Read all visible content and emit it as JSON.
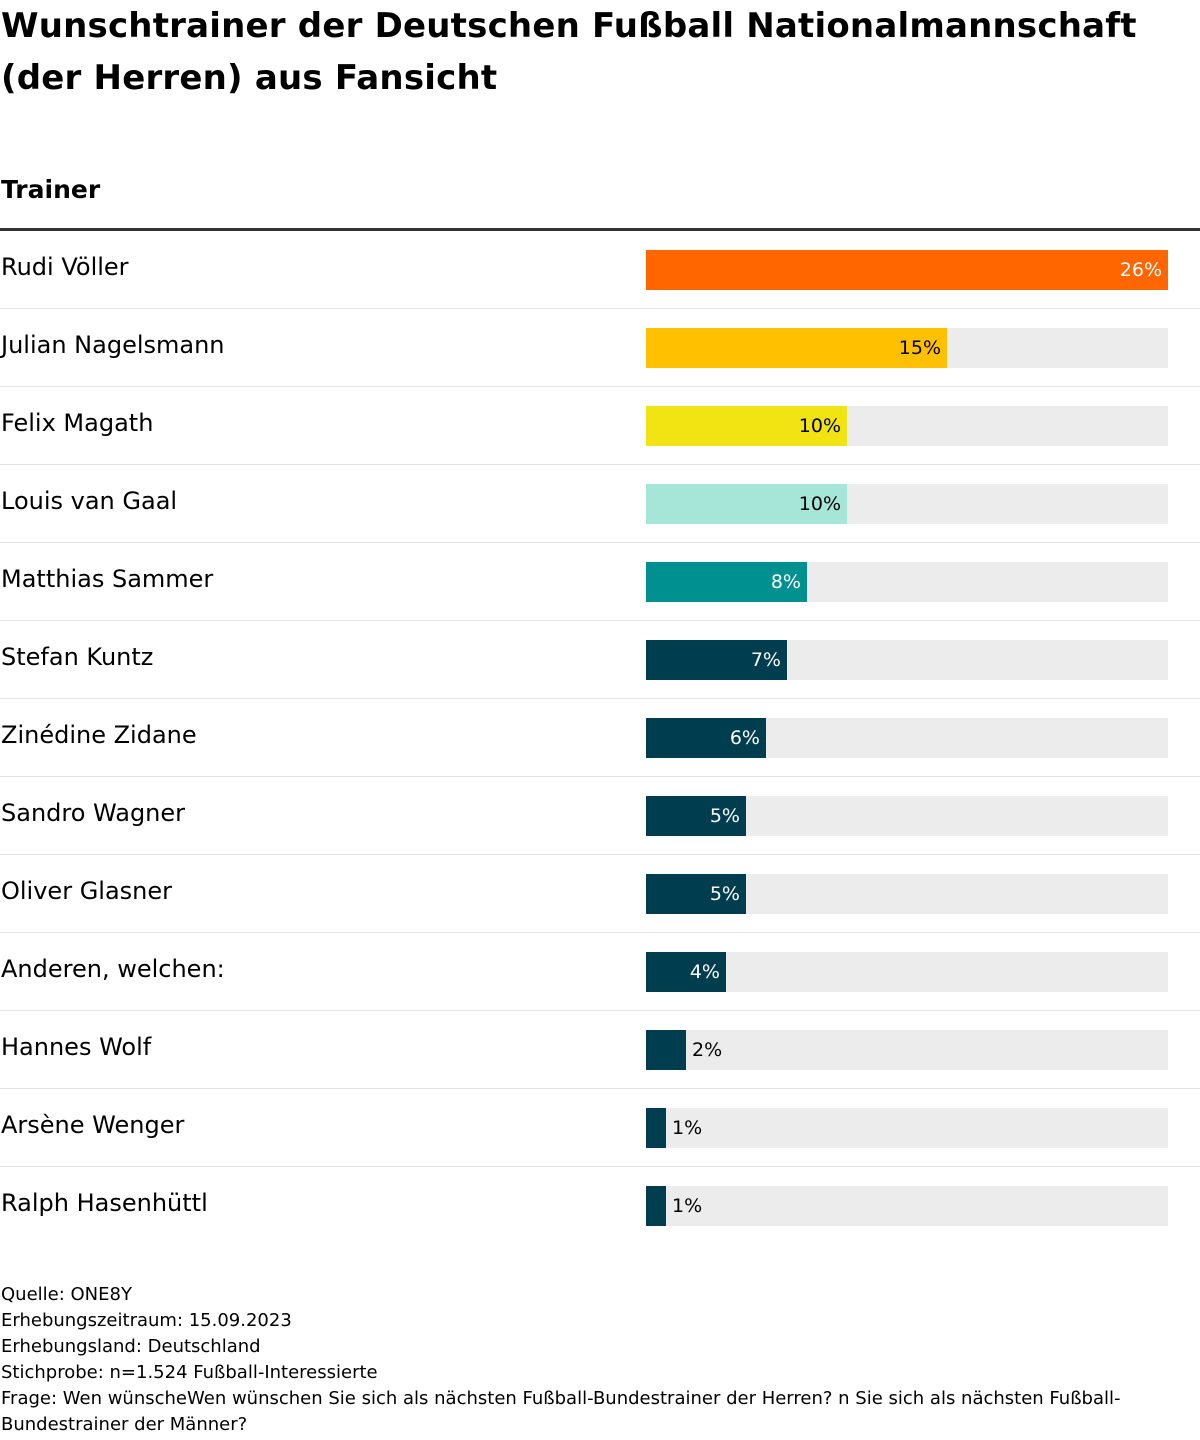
{
  "title": "Wunschtrainer der Deutschen Fußball Nationalmannschaft (der Herren) aus Fansicht",
  "column_header": "Trainer",
  "chart_data": {
    "type": "bar",
    "orientation": "horizontal",
    "title": "Wunschtrainer der Deutschen Fußball Nationalmannschaft (der Herren) aus Fansicht",
    "xlabel": "",
    "ylabel": "Trainer",
    "xlim": [
      0,
      26
    ],
    "unit": "%",
    "categories": [
      "Rudi Völler",
      "Julian Nagelsmann",
      "Felix Magath",
      "Louis van Gaal",
      "Matthias Sammer",
      "Stefan Kuntz",
      "Zinédine Zidane",
      "Sandro Wagner",
      "Oliver Glasner",
      "Anderen, welchen:",
      "Hannes Wolf",
      "Arsène Wenger",
      "Ralph Hasenhüttl"
    ],
    "values": [
      26,
      15,
      10,
      10,
      8,
      7,
      6,
      5,
      5,
      4,
      2,
      1,
      1
    ],
    "labels": [
      "26%",
      "15%",
      "10%",
      "10%",
      "8%",
      "7%",
      "6%",
      "5%",
      "5%",
      "4%",
      "2%",
      "1%",
      "1%"
    ],
    "colors": [
      "#ff6600",
      "#ffc000",
      "#f2e313",
      "#a6e6d8",
      "#009090",
      "#003e4f",
      "#003e4f",
      "#003e4f",
      "#003e4f",
      "#003e4f",
      "#003e4f",
      "#003e4f",
      "#003e4f"
    ],
    "label_colors": [
      "#ffffff",
      "#000000",
      "#000000",
      "#000000",
      "#ffffff",
      "#ffffff",
      "#ffffff",
      "#ffffff",
      "#ffffff",
      "#ffffff",
      "#000000",
      "#000000",
      "#000000"
    ],
    "track_color": "#ececec"
  },
  "footer": {
    "source": "Quelle: ONE8Y",
    "period": "Erhebungszeitraum: 15.09.2023",
    "country": "Erhebungsland: Deutschland",
    "sample": "Stichprobe: n=1.524 Fußball-Interessierte",
    "question": "Frage: Wen wünscheWen wünschen Sie sich als nächsten Fußball-Bundestrainer der Herren? n Sie sich als nächsten Fußball-Bundestrainer der Männer?"
  }
}
